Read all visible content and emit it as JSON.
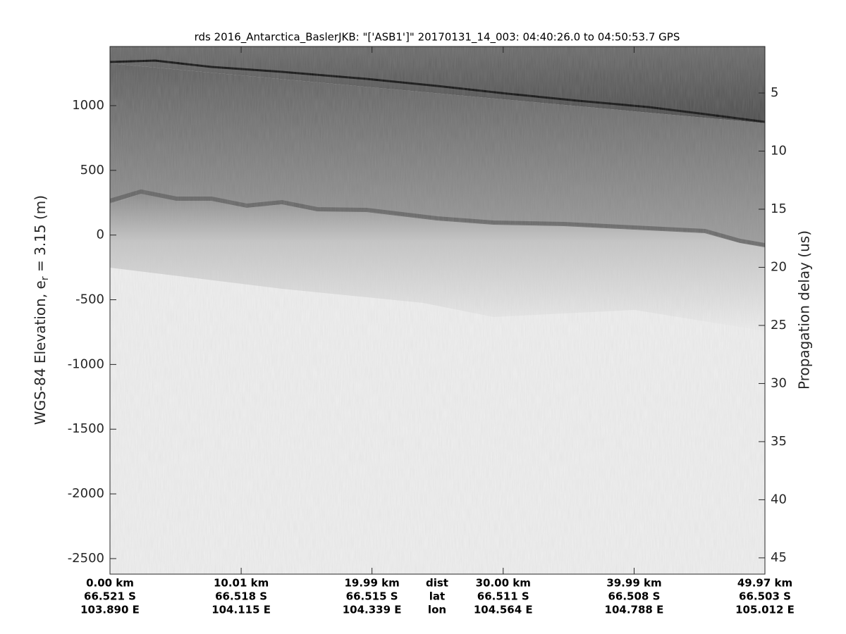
{
  "chart_data": {
    "type": "radargram",
    "title": "rds 2016_Antarctica_BaslerJKB: \"['ASB1']\"  20170131_14_003: 04:40:26.0 to 04:50:53.7 GPS",
    "ylabel": [
      "WGS-84 Elevation, e",
      "r",
      " = 3.15 (m)"
    ],
    "y2label": "Propagation delay (us)",
    "ylim": [
      -2620,
      1457
    ],
    "yticks": [
      1000,
      500,
      0,
      -500,
      -1000,
      -1500,
      -2000,
      -2500
    ],
    "y2lim": [
      46.4,
      1
    ],
    "y2ticks": [
      5,
      10,
      15,
      20,
      25,
      30,
      35,
      40,
      45
    ],
    "xlim": [
      0,
      49.97
    ],
    "xticks": [
      {
        "value": 0,
        "label": "0.00 km"
      },
      {
        "value": 10.01,
        "label": "10.01 km"
      },
      {
        "value": 19.99,
        "label": "19.99 km"
      },
      {
        "value": 30.0,
        "label": "30.00 km"
      },
      {
        "value": 39.99,
        "label": "39.99 km"
      },
      {
        "value": 49.97,
        "label": "49.97 km"
      }
    ],
    "lat_labels": [
      "66.521 S",
      "66.518 S",
      "66.515 S",
      "66.511 S",
      "66.508 S",
      "66.503 S"
    ],
    "lon_labels": [
      "103.890 E",
      "104.115 E",
      "104.339 E",
      "104.564 E",
      "104.788 E",
      "105.012 E"
    ],
    "row_names": [
      "dist",
      "lat",
      "lon"
    ],
    "colormap": "gray"
  }
}
